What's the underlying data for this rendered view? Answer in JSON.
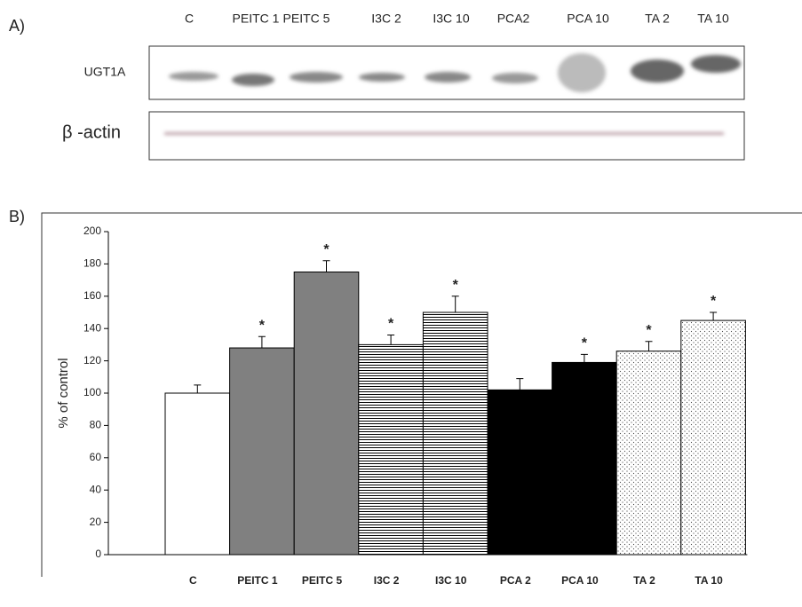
{
  "blot": {
    "label": "A)",
    "lanes": [
      "C",
      "PEITC 1",
      "PEITC 5",
      "I3C 2",
      "I3C 10",
      "PCA2",
      "PCA 10",
      "TA 2",
      "TA 10"
    ],
    "rows": [
      "UGT1A",
      "β -actin"
    ]
  },
  "chart_data": {
    "type": "bar",
    "panel_label": "B)",
    "ylabel": "% of control",
    "categories": [
      "C",
      "PEITC 1",
      "PEITC 5",
      "I3C 2",
      "I3C 10",
      "PCA 2",
      "PCA 10",
      "TA 2",
      "TA 10"
    ],
    "values": [
      100,
      128,
      175,
      130,
      150,
      102,
      119,
      126,
      145
    ],
    "errors": [
      5,
      7,
      7,
      6,
      10,
      7,
      5,
      6,
      5
    ],
    "markers": [
      null,
      "*",
      "*",
      "*",
      "*",
      null,
      "*",
      "*",
      "*"
    ],
    "fills": [
      "#ffffff",
      "#808080",
      "#808080",
      "stripes",
      "stripes",
      "#000000",
      "#000000",
      "dots",
      "dots"
    ],
    "ylim": [
      0,
      200
    ],
    "yticks": [
      0,
      20,
      40,
      60,
      80,
      100,
      120,
      140,
      160,
      180,
      200
    ]
  }
}
